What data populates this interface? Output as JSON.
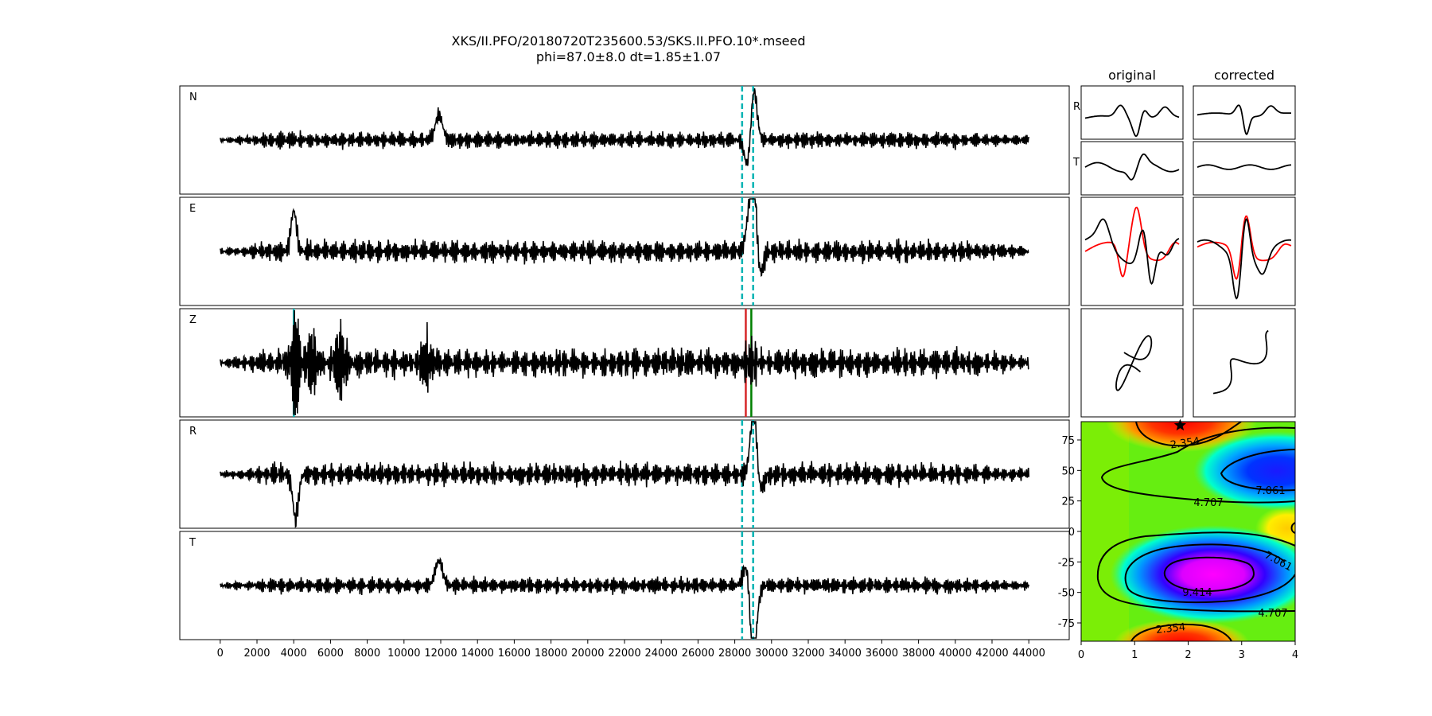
{
  "title": "XKS/II.PFO/20180720T235600.53/SKS.II.PFO.10*.mseed",
  "subtitle": "phi=87.0±8.0 dt=1.85±1.07",
  "chart_data": [
    {
      "type": "line",
      "name": "traces",
      "panels": [
        "N",
        "E",
        "Z",
        "R",
        "T"
      ],
      "xlim": [
        -2200,
        46200
      ],
      "xticks": [
        0,
        2000,
        4000,
        6000,
        8000,
        10000,
        12000,
        14000,
        16000,
        18000,
        20000,
        22000,
        24000,
        26000,
        28000,
        30000,
        32000,
        34000,
        36000,
        38000,
        40000,
        42000,
        44000
      ],
      "x_range": [
        0,
        44000
      ],
      "window_lines": {
        "color": "#00b3b3",
        "style": "dashed",
        "x": [
          28400,
          29000
        ]
      },
      "z_markers": [
        {
          "x": 4000,
          "color": "#00b3b3"
        },
        {
          "x": 28600,
          "color": "#d62728"
        },
        {
          "x": 28900,
          "color": "#008000"
        }
      ]
    },
    {
      "type": "line",
      "name": "particle-comparison",
      "col_titles": [
        "original",
        "corrected"
      ],
      "row_labels": [
        "R",
        "T"
      ],
      "series_colors": [
        "#000000",
        "#ff0000"
      ]
    },
    {
      "type": "heatmap",
      "name": "error-surface",
      "xlim": [
        0,
        4
      ],
      "ylim": [
        -90,
        90
      ],
      "xticks": [
        0,
        1,
        2,
        3,
        4
      ],
      "yticks": [
        75,
        50,
        25,
        0,
        -25,
        -50,
        -75
      ],
      "contour_levels": [
        "2.354",
        "4.707",
        "7.061",
        "9.414"
      ],
      "best_fit": {
        "dt": 1.85,
        "phi": 87.0
      }
    }
  ]
}
